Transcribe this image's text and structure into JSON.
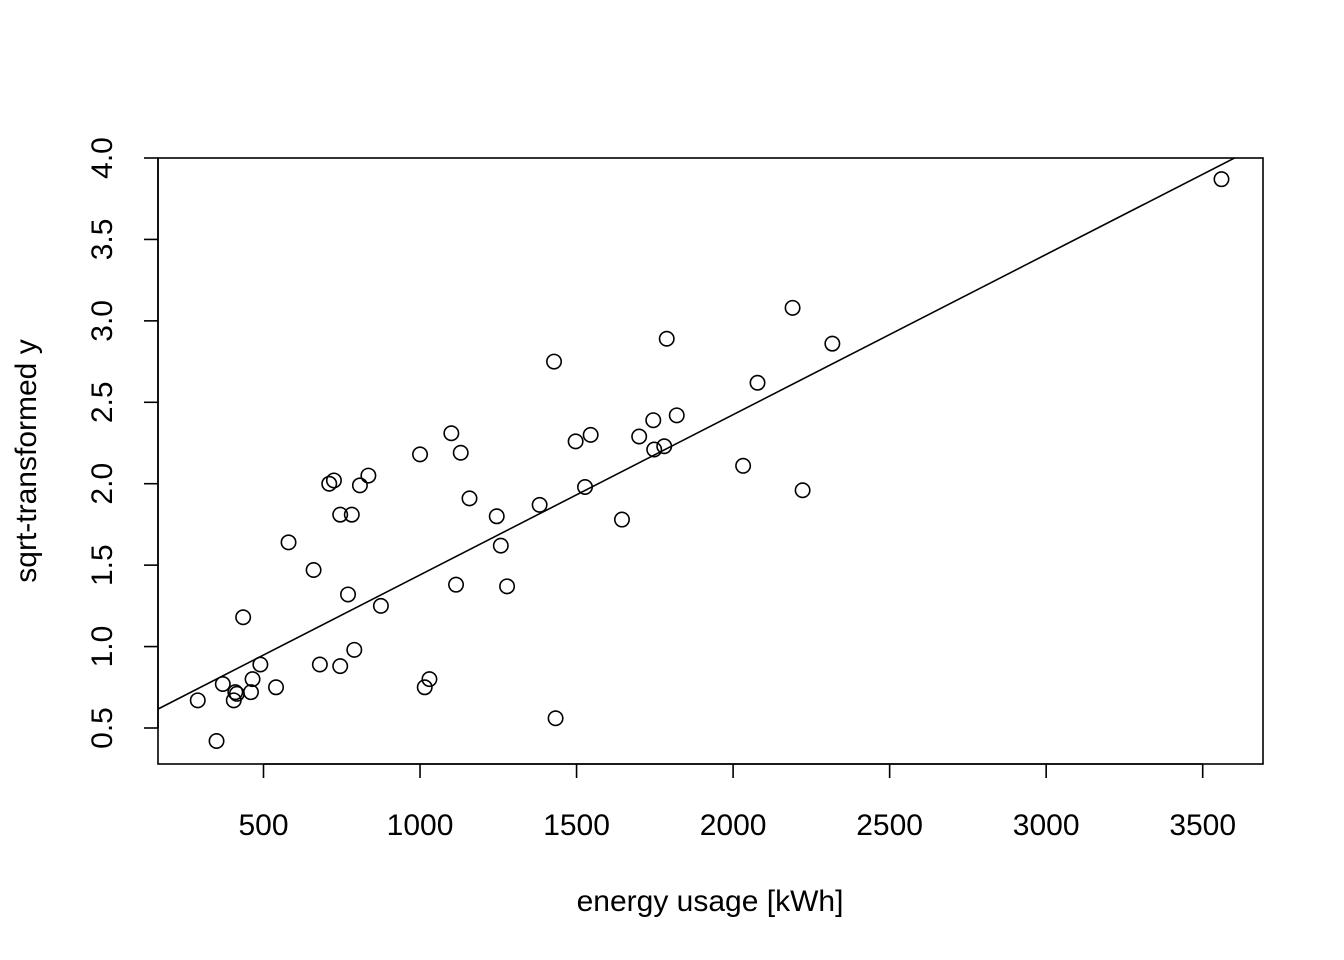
{
  "chart_data": {
    "type": "scatter",
    "title": "",
    "xlabel": "energy usage [kWh]",
    "ylabel": "sqrt-transformed y",
    "xlim": [
      160,
      3700
    ],
    "ylim": [
      0.27,
      4.0
    ],
    "x_ticks": [
      500,
      1000,
      1500,
      2000,
      2500,
      3000,
      3500
    ],
    "y_ticks": [
      0.5,
      1.0,
      1.5,
      2.0,
      2.5,
      3.0,
      3.5,
      4.0
    ],
    "x_tick_labels": [
      "500",
      "1000",
      "1500",
      "2000",
      "2500",
      "3000",
      "3500"
    ],
    "y_tick_labels": [
      "0.5",
      "1.0",
      "1.5",
      "2.0",
      "2.5",
      "3.0",
      "3.5",
      "4.0"
    ],
    "grid": false,
    "marker": "open-circle",
    "series": [
      {
        "points": [
          [
            290,
            0.67
          ],
          [
            350,
            0.42
          ],
          [
            370,
            0.77
          ],
          [
            405,
            0.67
          ],
          [
            410,
            0.72
          ],
          [
            415,
            0.71
          ],
          [
            435,
            1.18
          ],
          [
            460,
            0.72
          ],
          [
            465,
            0.8
          ],
          [
            490,
            0.89
          ],
          [
            540,
            0.75
          ],
          [
            580,
            1.64
          ],
          [
            660,
            1.47
          ],
          [
            680,
            0.89
          ],
          [
            710,
            2.0
          ],
          [
            725,
            2.02
          ],
          [
            745,
            0.88
          ],
          [
            745,
            1.81
          ],
          [
            770,
            1.32
          ],
          [
            782,
            1.81
          ],
          [
            790,
            0.98
          ],
          [
            808,
            1.99
          ],
          [
            835,
            2.05
          ],
          [
            875,
            1.25
          ],
          [
            1000,
            2.18
          ],
          [
            1015,
            0.75
          ],
          [
            1030,
            0.8
          ],
          [
            1100,
            2.31
          ],
          [
            1115,
            1.38
          ],
          [
            1130,
            2.19
          ],
          [
            1158,
            1.91
          ],
          [
            1245,
            1.8
          ],
          [
            1258,
            1.62
          ],
          [
            1278,
            1.37
          ],
          [
            1382,
            1.87
          ],
          [
            1428,
            2.75
          ],
          [
            1433,
            0.56
          ],
          [
            1497,
            2.26
          ],
          [
            1527,
            1.98
          ],
          [
            1545,
            2.3
          ],
          [
            1645,
            1.78
          ],
          [
            1700,
            2.29
          ],
          [
            1745,
            2.39
          ],
          [
            1748,
            2.21
          ],
          [
            1780,
            2.23
          ],
          [
            1788,
            2.89
          ],
          [
            1820,
            2.42
          ],
          [
            2032,
            2.11
          ],
          [
            2078,
            2.62
          ],
          [
            2190,
            3.08
          ],
          [
            2222,
            1.96
          ],
          [
            2317,
            2.86
          ],
          [
            3560,
            3.87
          ]
        ]
      }
    ],
    "fit_line": {
      "intercept": 0.456,
      "slope": 0.000984
    }
  }
}
